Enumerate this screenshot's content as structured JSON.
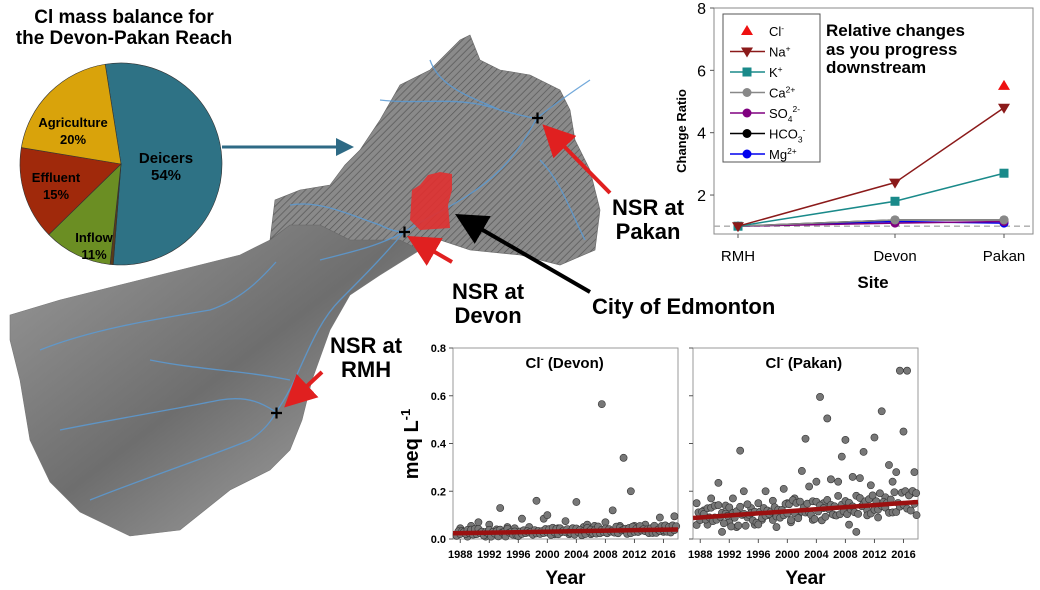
{
  "pie": {
    "title_line1": "Cl mass balance for",
    "title_line2": "the Devon-Pakan Reach",
    "chart_data": {
      "type": "pie",
      "slices": [
        {
          "label": "Deicers",
          "value": 54,
          "pct_label": "54%",
          "color": "#2e7285"
        },
        {
          "label": "",
          "value": 0.5,
          "pct_label": "",
          "color": "#5a3a1a"
        },
        {
          "label": "Inflow",
          "value": 11,
          "pct_label": "11%",
          "color": "#6b8e23"
        },
        {
          "label": "Effluent",
          "value": 15,
          "pct_label": "15%",
          "color": "#a0290b"
        },
        {
          "label": "Agriculture",
          "value": 20,
          "pct_label": "20%",
          "color": "#d9a30b"
        }
      ]
    }
  },
  "map": {
    "labels": {
      "pakan_1": "NSR at",
      "pakan_2": "Pakan",
      "devon_1": "NSR at",
      "devon_2": "Devon",
      "rmh_1": "NSR at",
      "rmh_2": "RMH",
      "edmonton": "City of Edmonton"
    },
    "colors": {
      "city": "#e03030",
      "river": "#5b9bd5",
      "arrow_red": "#e02020",
      "arrow_blue": "#2e6a85"
    }
  },
  "line_chart": {
    "annotation_1": "Relative changes",
    "annotation_2": "as you progress",
    "annotation_3": "downstream",
    "chart_data": {
      "type": "line",
      "categories": [
        "RMH",
        "Devon",
        "Pakan"
      ],
      "xlabel": "Site",
      "ylabel": "Change Ratio",
      "ylim": [
        0.75,
        8
      ],
      "yticks": [
        "2",
        "4",
        "6",
        "8"
      ],
      "reference_line": 1,
      "legend_position": "top-left",
      "series": [
        {
          "name": "Cl",
          "sup": "-",
          "sub": "",
          "values": [
            null,
            null,
            5.5
          ],
          "color": "#ee1111",
          "marker": "triangle-up",
          "line": false
        },
        {
          "name": "Na",
          "sup": "+",
          "sub": "",
          "values": [
            1,
            2.4,
            4.8
          ],
          "color": "#8b1a1a",
          "marker": "triangle-down",
          "line": true
        },
        {
          "name": "K",
          "sup": "+",
          "sub": "",
          "values": [
            1,
            1.8,
            2.7
          ],
          "color": "#1a8a8a",
          "marker": "square",
          "line": true
        },
        {
          "name": "Ca",
          "sup": "2+",
          "sub": "",
          "values": [
            1,
            1.2,
            1.2
          ],
          "color": "#888888",
          "marker": "circle",
          "line": true
        },
        {
          "name": "SO",
          "sup": "2-",
          "sub": "4",
          "values": [
            1,
            1.1,
            1.15
          ],
          "color": "#800080",
          "marker": "circle",
          "line": true
        },
        {
          "name": "HCO",
          "sup": "-",
          "sub": "3",
          "values": [
            1,
            1.2,
            1.2
          ],
          "color": "#000000",
          "marker": "circle",
          "line": true
        },
        {
          "name": "Mg",
          "sup": "2+",
          "sub": "",
          "values": [
            1,
            1.15,
            1.1
          ],
          "color": "#0000ee",
          "marker": "circle",
          "line": true
        }
      ]
    }
  },
  "scatter": {
    "ylabel": "meq L",
    "ylabel_sup": "-1",
    "chart_data": [
      {
        "type": "scatter",
        "title": "Cl",
        "title_sup": "-",
        "title_suffix": " (Devon)",
        "xlabel": "Year",
        "xlim": [
          1987,
          2018
        ],
        "ylim": [
          0,
          0.8
        ],
        "xticks": [
          "1988",
          "1992",
          "1996",
          "2000",
          "2004",
          "2008",
          "2012",
          "2016"
        ],
        "yticks": [
          "0.0",
          "0.2",
          "0.4",
          "0.6",
          "0.8"
        ],
        "trend": [
          [
            1987,
            0.024
          ],
          [
            2018,
            0.04
          ]
        ],
        "points": [
          [
            1987.5,
            0.02
          ],
          [
            1988,
            0.045
          ],
          [
            1988.5,
            0.03
          ],
          [
            1989,
            0.01
          ],
          [
            1989.5,
            0.055
          ],
          [
            1990,
            0.02
          ],
          [
            1990.5,
            0.07
          ],
          [
            1991,
            0.03
          ],
          [
            1991.5,
            0.01
          ],
          [
            1992,
            0.06
          ],
          [
            1992.5,
            0.02
          ],
          [
            1993,
            0.04
          ],
          [
            1993.5,
            0.13
          ],
          [
            1994,
            0.02
          ],
          [
            1994.5,
            0.05
          ],
          [
            1995,
            0.03
          ],
          [
            1995.5,
            0.045
          ],
          [
            1996,
            0.02
          ],
          [
            1996.5,
            0.085
          ],
          [
            1997,
            0.03
          ],
          [
            1997.5,
            0.05
          ],
          [
            1998,
            0.02
          ],
          [
            1998.5,
            0.16
          ],
          [
            1999,
            0.03
          ],
          [
            1999.5,
            0.085
          ],
          [
            2000,
            0.1
          ],
          [
            2000.5,
            0.04
          ],
          [
            2001,
            0.02
          ],
          [
            2001.5,
            0.045
          ],
          [
            2002,
            0.03
          ],
          [
            2002.5,
            0.075
          ],
          [
            2003,
            0.02
          ],
          [
            2003.5,
            0.045
          ],
          [
            2004,
            0.155
          ],
          [
            2004.5,
            0.03
          ],
          [
            2005,
            0.05
          ],
          [
            2005.5,
            0.06
          ],
          [
            2006,
            0.02
          ],
          [
            2006.5,
            0.055
          ],
          [
            2007,
            0.04
          ],
          [
            2007.5,
            0.565
          ],
          [
            2008,
            0.07
          ],
          [
            2008.5,
            0.03
          ],
          [
            2009,
            0.12
          ],
          [
            2009.5,
            0.045
          ],
          [
            2010,
            0.055
          ],
          [
            2010.5,
            0.34
          ],
          [
            2011,
            0.03
          ],
          [
            2011.5,
            0.2
          ],
          [
            2012,
            0.055
          ],
          [
            2012.5,
            0.03
          ],
          [
            2013,
            0.05
          ],
          [
            2013.5,
            0.06
          ],
          [
            2014,
            0.03
          ],
          [
            2014.5,
            0.045
          ],
          [
            2015,
            0.035
          ],
          [
            2015.5,
            0.09
          ],
          [
            2016,
            0.03
          ],
          [
            2016.5,
            0.05
          ],
          [
            2017,
            0.04
          ],
          [
            2017.5,
            0.095
          ]
        ]
      },
      {
        "type": "scatter",
        "title": "Cl",
        "title_sup": "-",
        "title_suffix": " (Pakan)",
        "xlabel": "Year",
        "xlim": [
          1987,
          2018
        ],
        "ylim": [
          0,
          0.8
        ],
        "xticks": [
          "1988",
          "1992",
          "1996",
          "2000",
          "2004",
          "2008",
          "2012",
          "2016"
        ],
        "yticks": [
          "0.0",
          "0.2",
          "0.4",
          "0.6",
          "0.8"
        ],
        "trend": [
          [
            1987,
            0.088
          ],
          [
            2018,
            0.155
          ]
        ],
        "points": [
          [
            1987.5,
            0.15
          ],
          [
            1988,
            0.08
          ],
          [
            1988.5,
            0.12
          ],
          [
            1989,
            0.06
          ],
          [
            1989.5,
            0.17
          ],
          [
            1990,
            0.09
          ],
          [
            1990.5,
            0.235
          ],
          [
            1991,
            0.03
          ],
          [
            1991.5,
            0.14
          ],
          [
            1992,
            0.07
          ],
          [
            1992.5,
            0.17
          ],
          [
            1993,
            0.05
          ],
          [
            1993.5,
            0.37
          ],
          [
            1994,
            0.2
          ],
          [
            1994.5,
            0.09
          ],
          [
            1995,
            0.13
          ],
          [
            1995.5,
            0.06
          ],
          [
            1996,
            0.15
          ],
          [
            1996.5,
            0.08
          ],
          [
            1997,
            0.2
          ],
          [
            1997.5,
            0.1
          ],
          [
            1998,
            0.16
          ],
          [
            1998.5,
            0.05
          ],
          [
            1999,
            0.12
          ],
          [
            1999.5,
            0.21
          ],
          [
            2000,
            0.15
          ],
          [
            2000.5,
            0.07
          ],
          [
            2001,
            0.17
          ],
          [
            2001.5,
            0.1
          ],
          [
            2002,
            0.285
          ],
          [
            2002.5,
            0.42
          ],
          [
            2003,
            0.22
          ],
          [
            2003.5,
            0.08
          ],
          [
            2004,
            0.24
          ],
          [
            2004.5,
            0.595
          ],
          [
            2005,
            0.15
          ],
          [
            2005.5,
            0.505
          ],
          [
            2006,
            0.25
          ],
          [
            2006.5,
            0.1
          ],
          [
            2007,
            0.24
          ],
          [
            2007.5,
            0.345
          ],
          [
            2008,
            0.415
          ],
          [
            2008.5,
            0.06
          ],
          [
            2009,
            0.26
          ],
          [
            2009.5,
            0.03
          ],
          [
            2010,
            0.255
          ],
          [
            2010.5,
            0.365
          ],
          [
            2011,
            0.12
          ],
          [
            2011.5,
            0.225
          ],
          [
            2012,
            0.425
          ],
          [
            2012.5,
            0.09
          ],
          [
            2013,
            0.535
          ],
          [
            2013.5,
            0.175
          ],
          [
            2014,
            0.31
          ],
          [
            2014.5,
            0.24
          ],
          [
            2015,
            0.28
          ],
          [
            2015.5,
            0.705
          ],
          [
            2016,
            0.45
          ],
          [
            2016.5,
            0.705
          ],
          [
            2017,
            0.19
          ],
          [
            2017.5,
            0.28
          ],
          [
            2017.8,
            0.1
          ]
        ]
      }
    ]
  }
}
